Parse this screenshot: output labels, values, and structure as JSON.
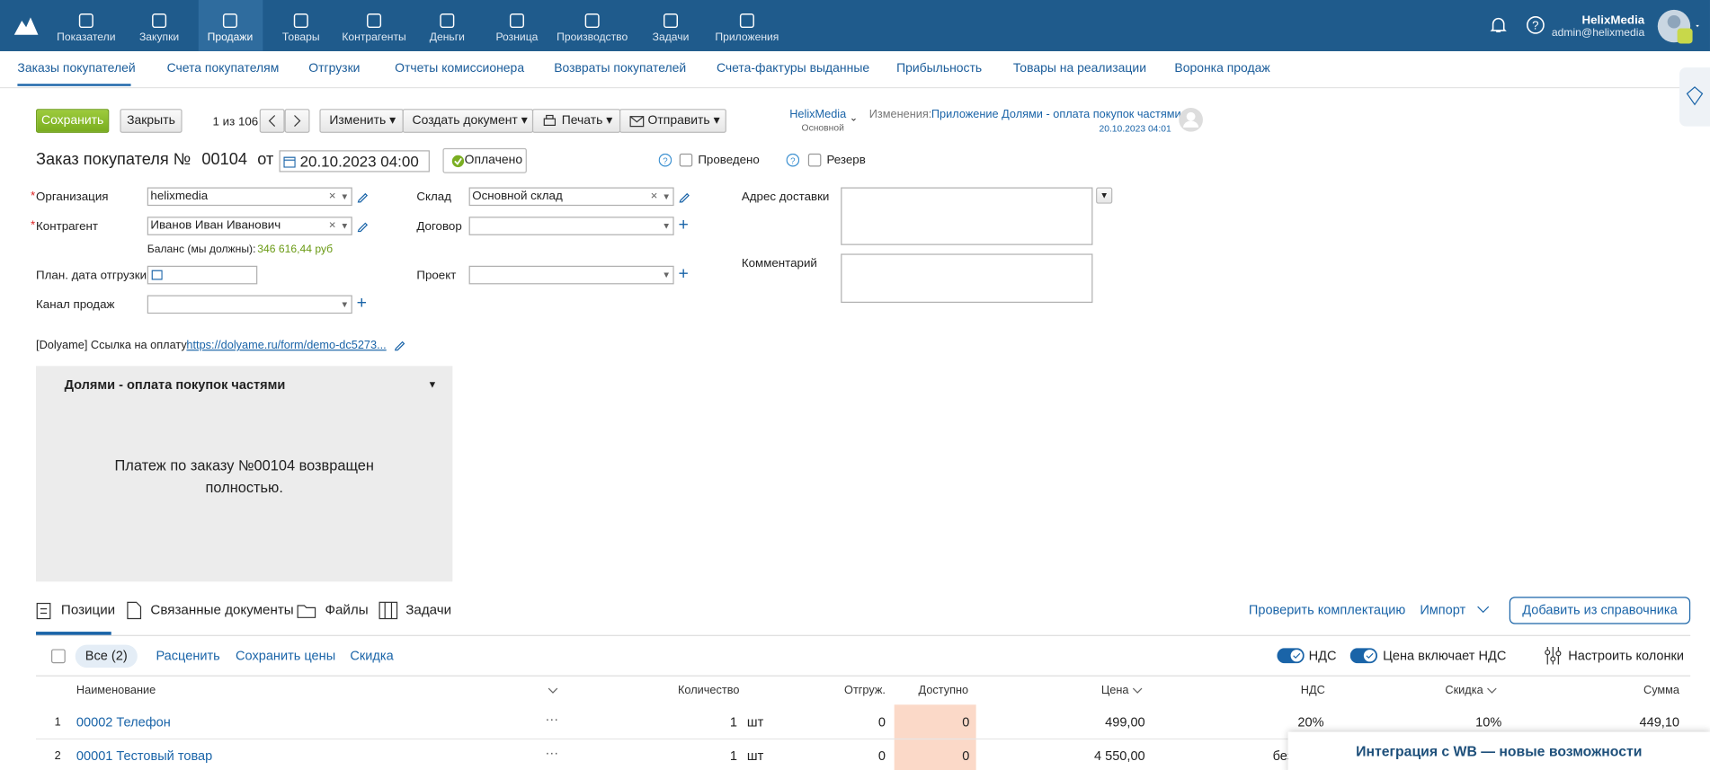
{
  "nav": {
    "items": [
      "Показатели",
      "Закупки",
      "Продажи",
      "Товары",
      "Контрагенты",
      "Деньги",
      "Розница",
      "Производство",
      "Задачи",
      "Приложения"
    ],
    "user_name": "HelixMedia",
    "user_email": "admin@helixmedia"
  },
  "subnav": {
    "tabs": [
      "Заказы покупателей",
      "Счета покупателям",
      "Отгрузки",
      "Отчеты комиссионера",
      "Возвраты покупателей",
      "Счета-фактуры выданные",
      "Прибыльность",
      "Товары на реализации",
      "Воронка продаж"
    ]
  },
  "toolbar": {
    "save": "Сохранить",
    "close": "Закрыть",
    "pager": "1 из 106",
    "edit": "Изменить",
    "create_document": "Создать документ",
    "print": "Печать",
    "send": "Отправить",
    "account": "HelixMedia",
    "account_sub": "Основной",
    "changes_label": "Изменения:",
    "changes_text": "Приложение Долями - оплата покупок частями",
    "changes_date": "20.10.2023 04:01"
  },
  "document": {
    "title": "Заказ покупателя №",
    "number": "00104",
    "from": "от",
    "date": "20.10.2023 04:00",
    "paid": "Оплачено",
    "posted": "Проведено",
    "reserve": "Резерв"
  },
  "fields": {
    "organization_label": "Организация",
    "organization": "helixmedia",
    "counterparty_label": "Контрагент",
    "counterparty": "Иванов Иван Иванович",
    "balance_label": "Баланс (мы должны):",
    "balance": "346 616,44 руб",
    "ship_date_label": "План. дата отгрузки",
    "channel_label": "Канал продаж",
    "warehouse_label": "Склад",
    "warehouse": "Основной склад",
    "contract_label": "Договор",
    "project_label": "Проект",
    "address_label": "Адрес доставки",
    "comment_label": "Комментарий",
    "dolyame_label": "[Dolyame] Ссылка на оплату",
    "dolyame_link": "https://dolyame.ru/form/demo-dc5273..."
  },
  "widget": {
    "title": "Долями - оплата покупок частями",
    "message": "Платеж по заказу №00104 возвращен полностью."
  },
  "tabs": {
    "items": [
      "Позиции",
      "Связанные документы",
      "Файлы",
      "Задачи"
    ],
    "check": "Проверить комплектацию",
    "import": "Импорт",
    "add": "Добавить из справочника"
  },
  "filters": {
    "all": "Все (2)",
    "reprice": "Расценить",
    "save_prices": "Сохранить цены",
    "discount": "Скидка",
    "vat": "НДС",
    "price_includes_vat": "Цена включает НДС",
    "columns": "Настроить колонки"
  },
  "table": {
    "columns": [
      "Наименование",
      "Количество",
      "Отгруж.",
      "Доступно",
      "Цена",
      "НДС",
      "Скидка",
      "Сумма"
    ],
    "rows": [
      {
        "n": "1",
        "name": "00002 Телефон",
        "qty": "1",
        "unit": "шт",
        "shipped": "0",
        "available": "0",
        "price": "499,00",
        "vat": "20%",
        "discount": "10%",
        "sum": "449,10"
      },
      {
        "n": "2",
        "name": "00001 Тестовый товар",
        "qty": "1",
        "unit": "шт",
        "shipped": "0",
        "available": "0",
        "price": "4 550,00",
        "vat": "без НДС"
      }
    ]
  },
  "banner": "Интеграция с WB — новые возможности"
}
